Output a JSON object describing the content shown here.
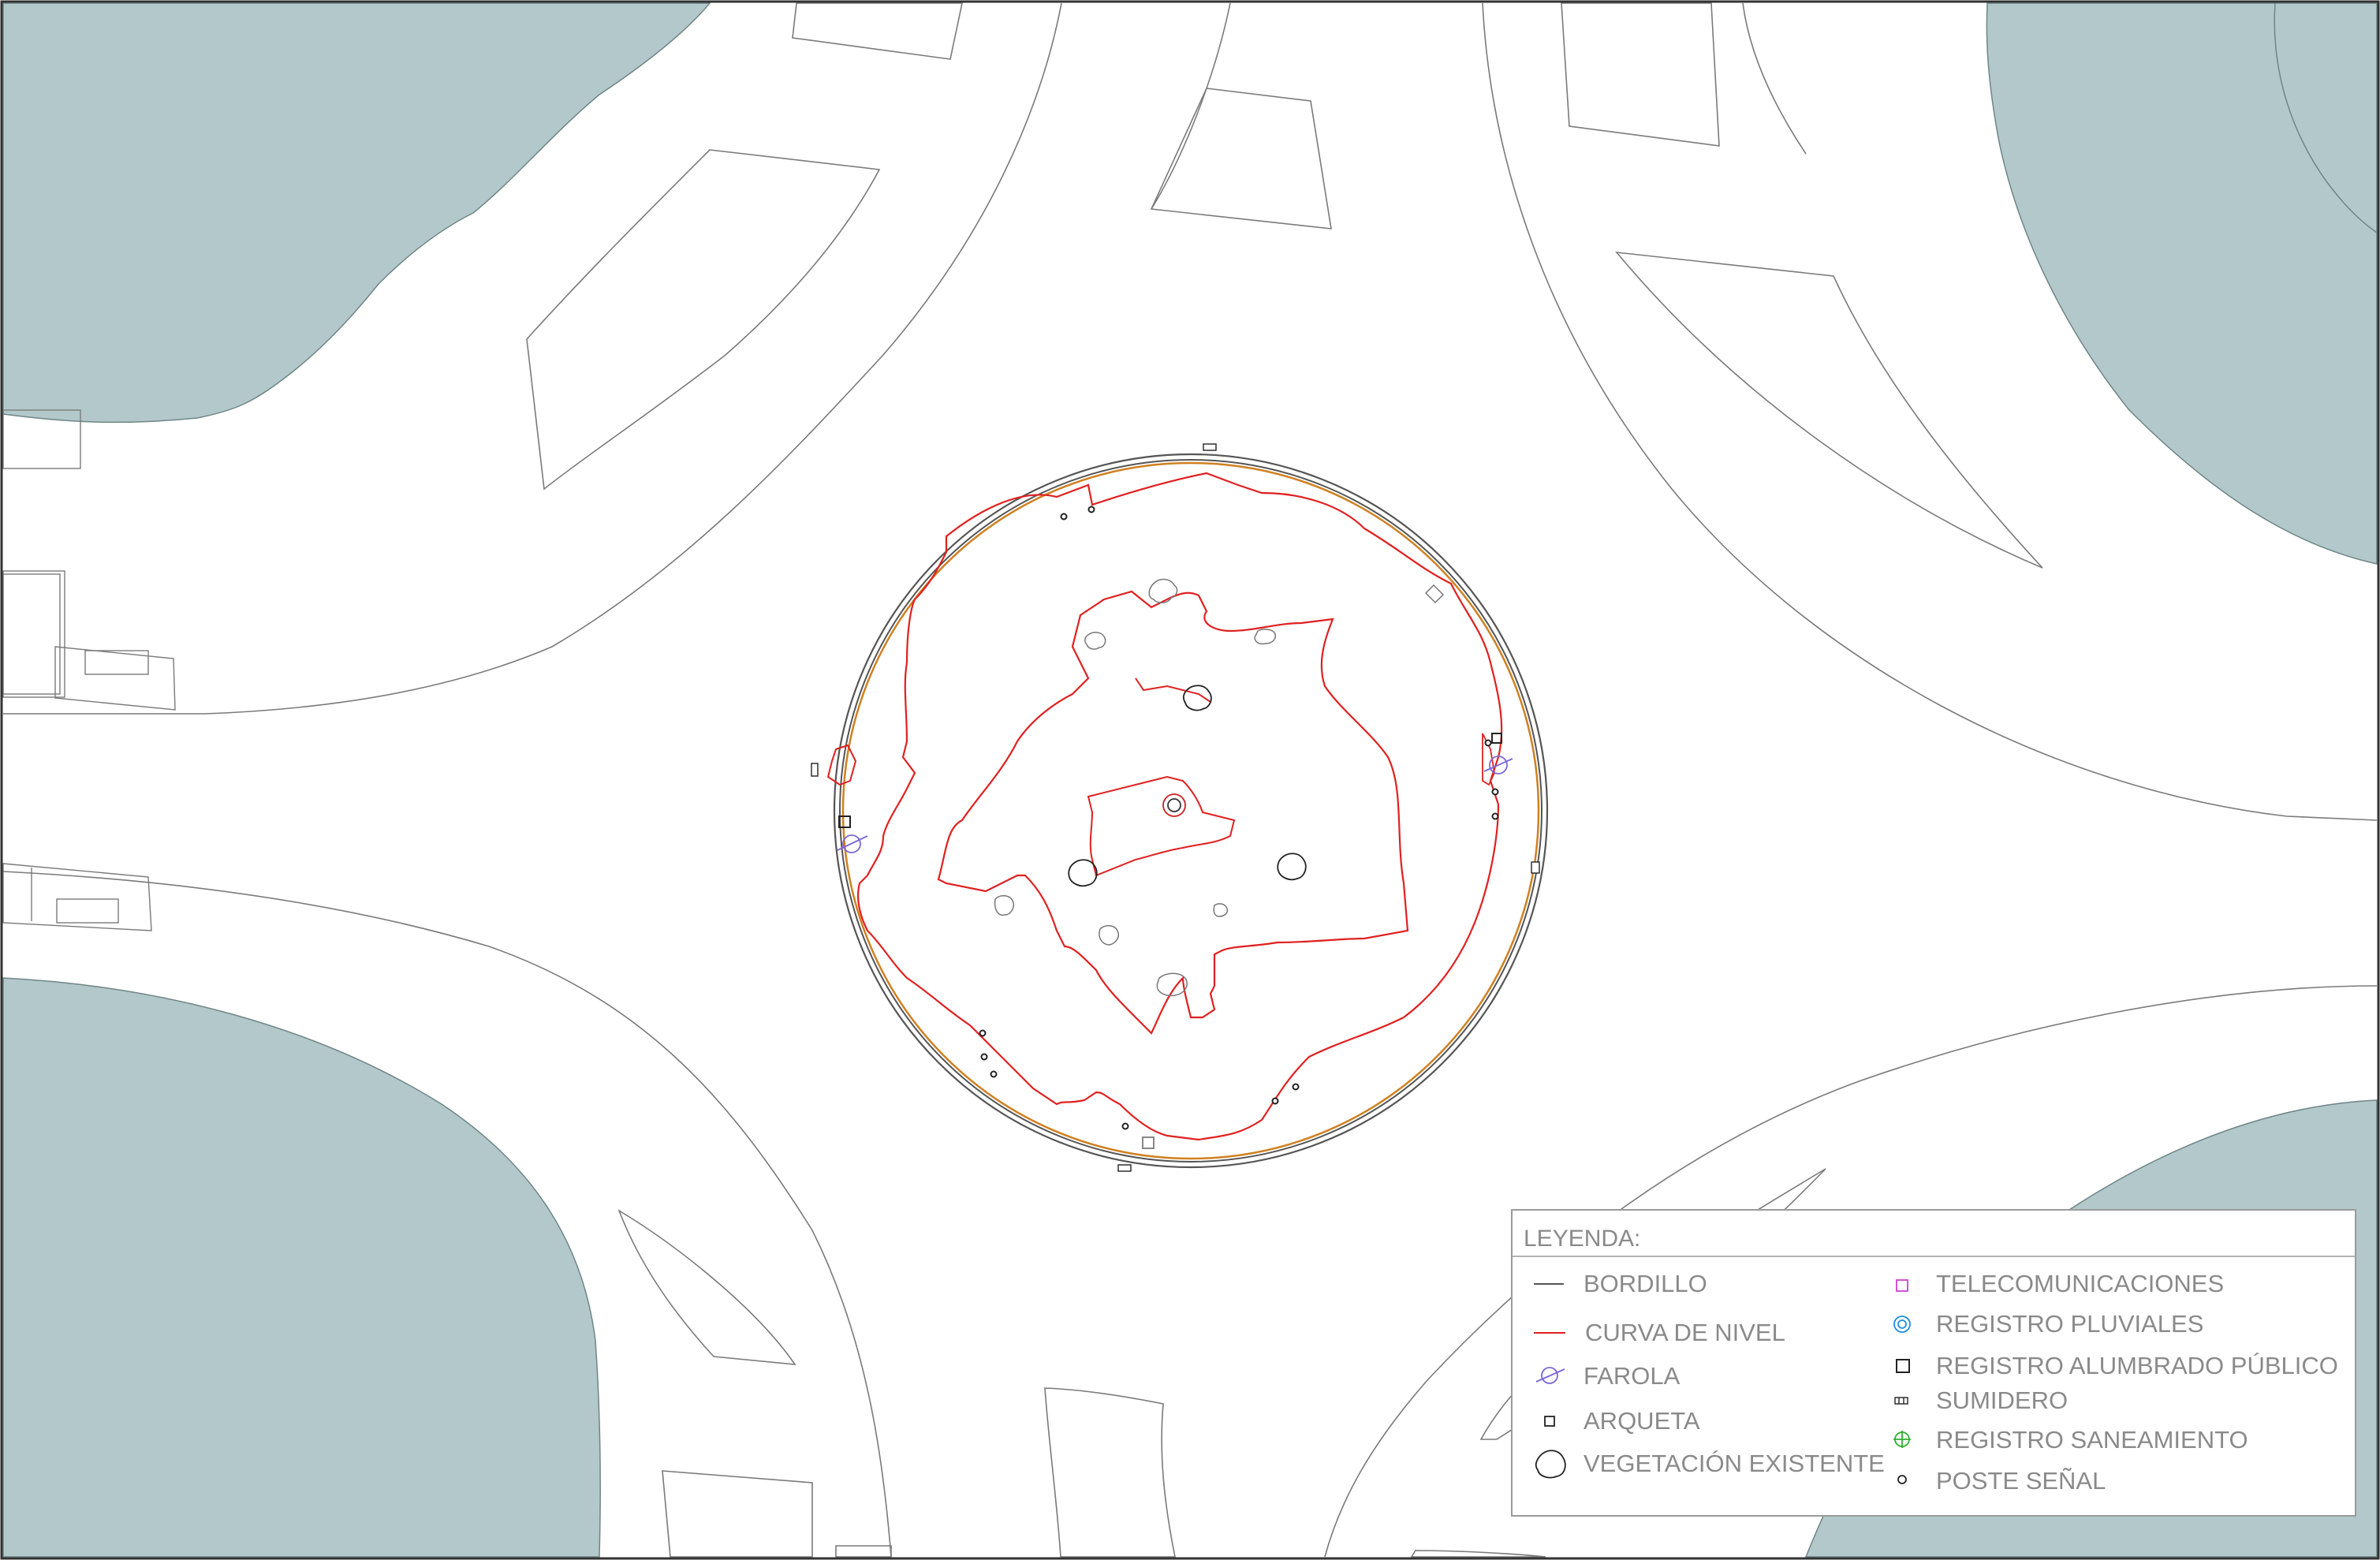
{
  "legend": {
    "title": "LEYENDA:",
    "items": [
      {
        "label": "BORDILLO",
        "icon": "bordillo-line-icon",
        "color": "#555555"
      },
      {
        "label": "CURVA DE NIVEL",
        "icon": "contour-line-icon",
        "color": "#e02020"
      },
      {
        "label": "FAROLA",
        "icon": "street-lamp-icon",
        "color": "#7b68d6"
      },
      {
        "label": "ARQUETA",
        "icon": "small-square-icon",
        "color": "#222222"
      },
      {
        "label": "VEGETACIÓN EXISTENTE",
        "icon": "tree-outline-icon",
        "color": "#222222"
      },
      {
        "label": "TELECOMUNICACIONES",
        "icon": "telecom-square-icon",
        "color": "#d040d0"
      },
      {
        "label": "REGISTRO PLUVIALES",
        "icon": "double-circle-icon",
        "color": "#1e90e0"
      },
      {
        "label": "REGISTRO ALUMBRADO PÚBLICO",
        "icon": "square-icon",
        "color": "#222222"
      },
      {
        "label": "SUMIDERO",
        "icon": "grate-icon",
        "color": "#222222"
      },
      {
        "label": "REGISTRO SANEAMIENTO",
        "icon": "crosshair-circle-icon",
        "color": "#30b030"
      },
      {
        "label": "POSTE SEÑAL",
        "icon": "small-circle-icon",
        "color": "#222222"
      }
    ]
  },
  "colors": {
    "water": "#b3c8ca",
    "curb": "#555555",
    "contour": "#e02020",
    "inner_ring": "#d08020"
  }
}
